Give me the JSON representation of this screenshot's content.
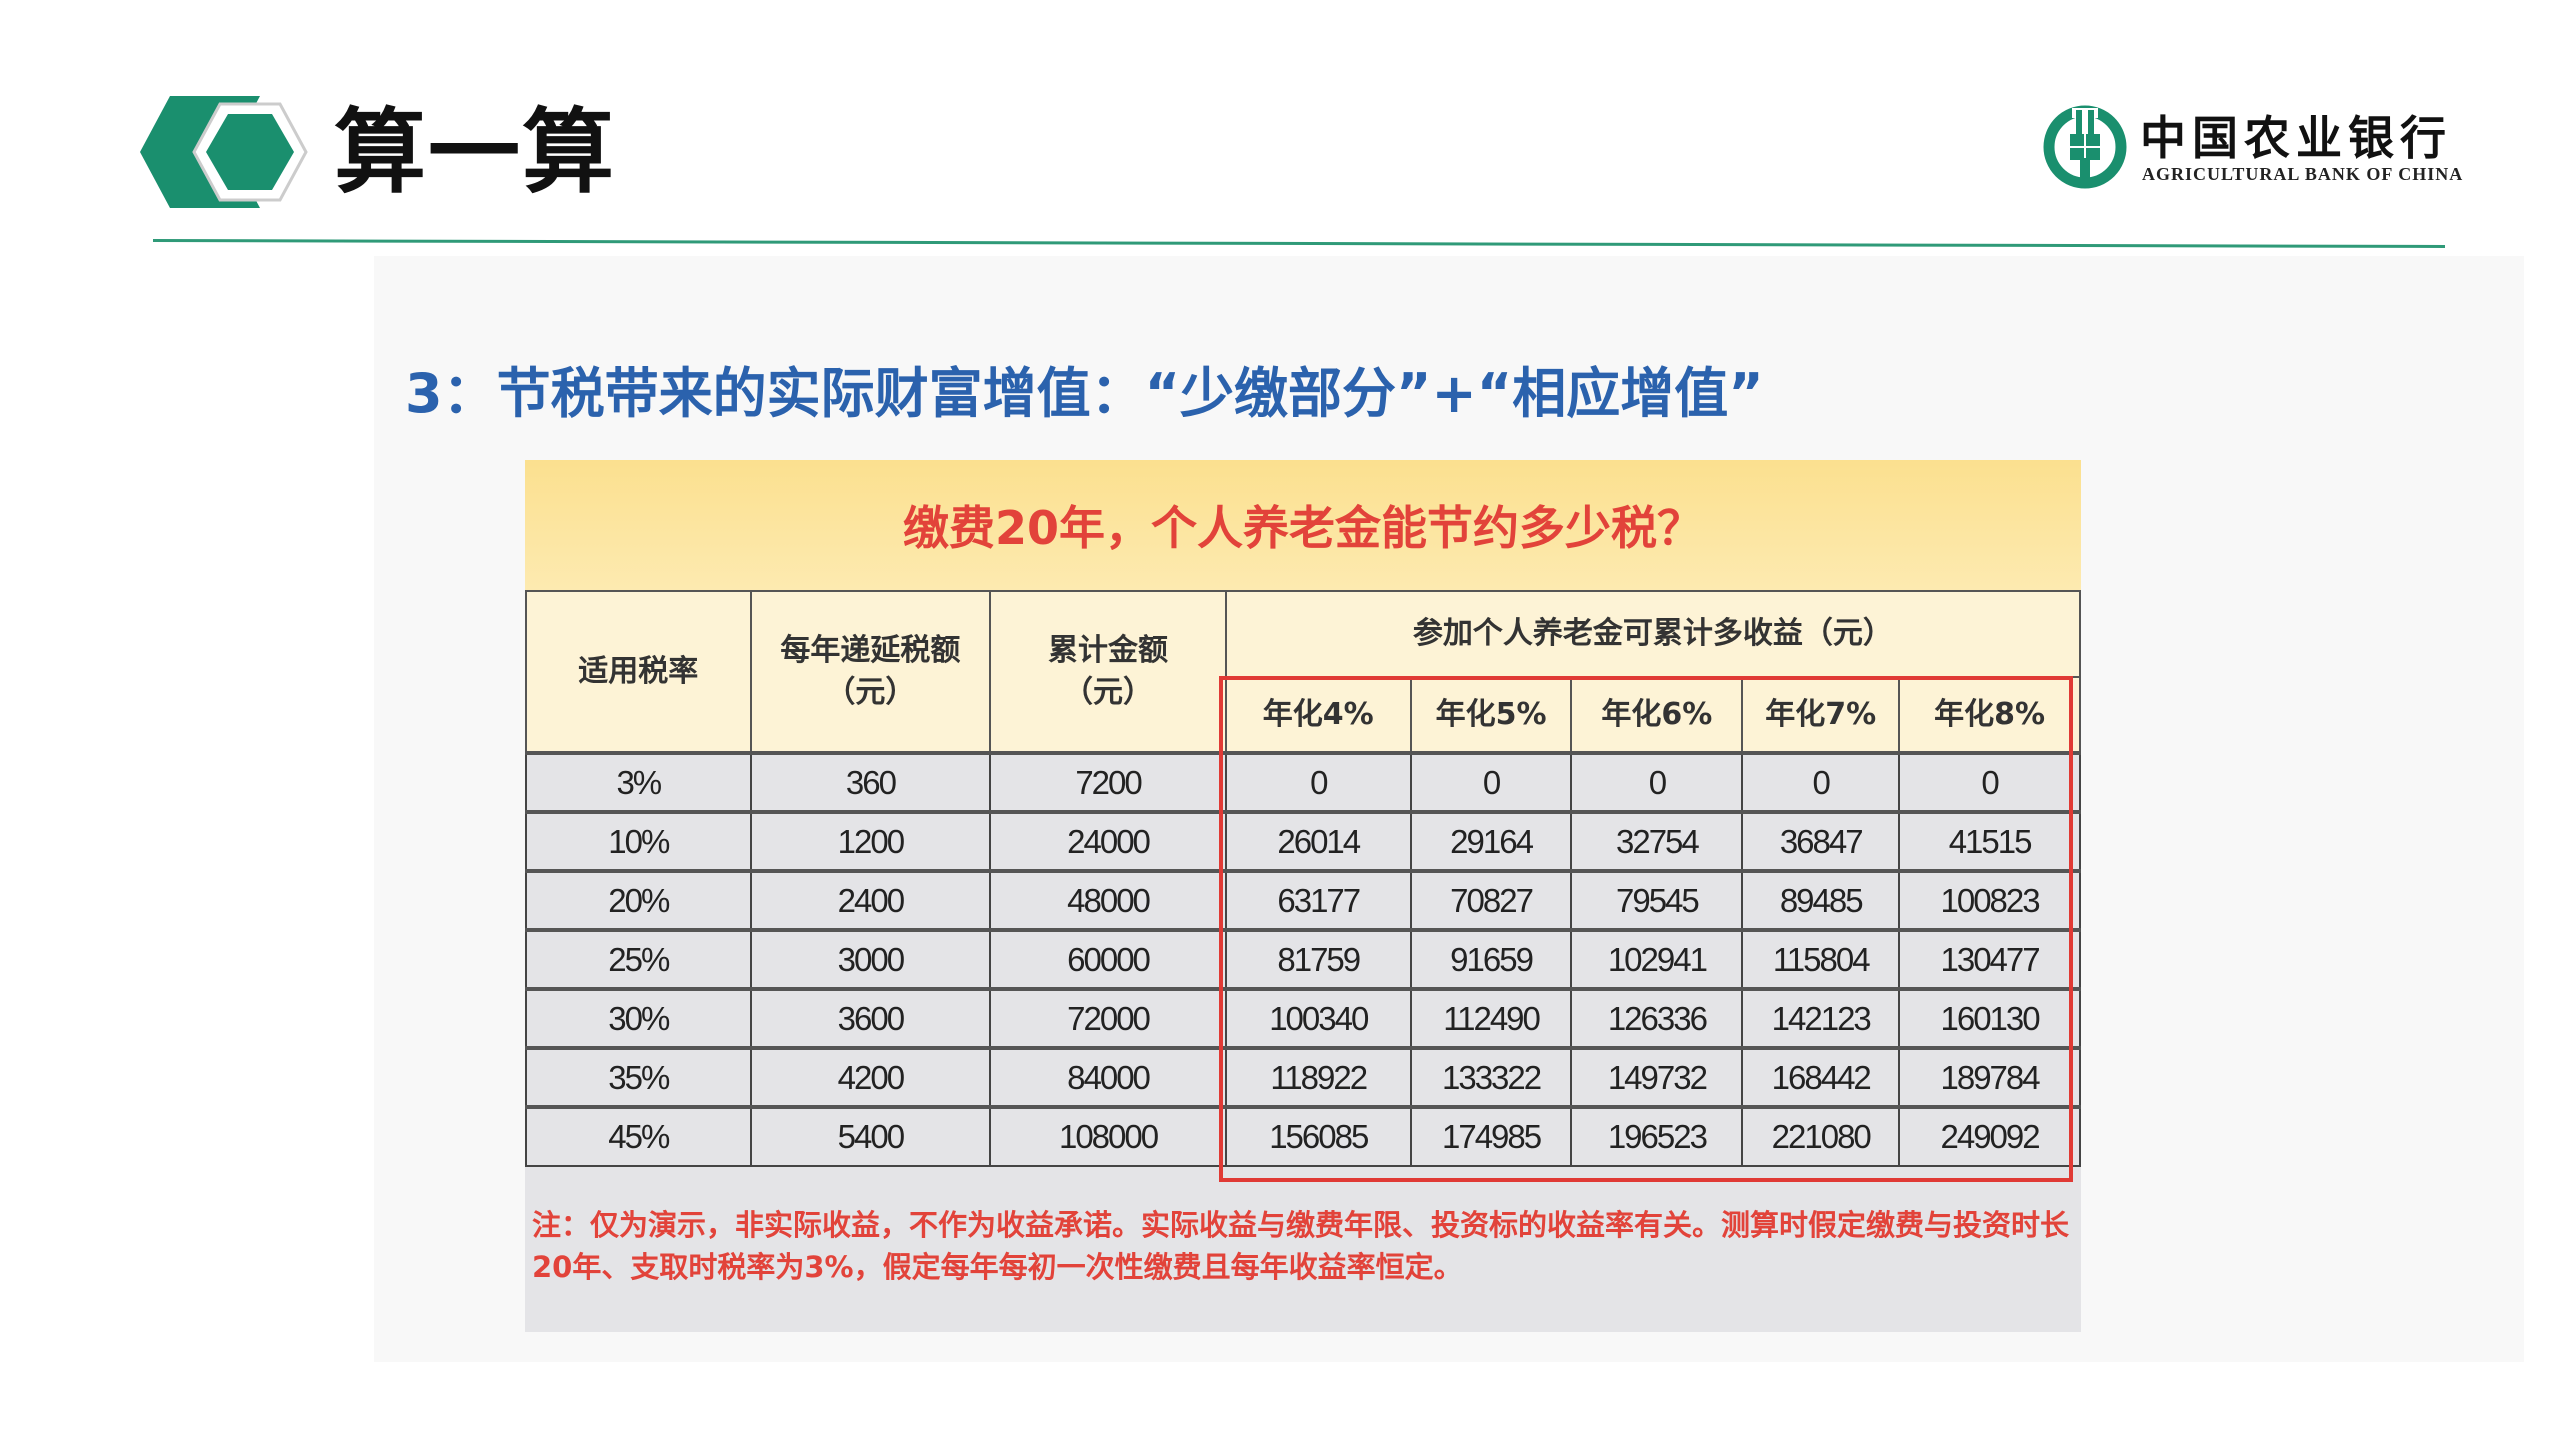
{
  "header": {
    "title": "算一算",
    "icon": "hexagon-arrow-icon",
    "logo": {
      "cn": "中国农业银行",
      "en": "AGRICULTURAL BANK OF CHINA"
    }
  },
  "colors": {
    "brand_green": "#1a8f6e",
    "subtitle_blue": "#2b62ad",
    "highlight_red": "#e2433a",
    "banner_yellow": "#fbe08f"
  },
  "subtitle": "3：节税带来的实际财富增值：“少缴部分”+“相应增值”",
  "banner": "缴费20年，个人养老金能节约多少税？",
  "table": {
    "headers": {
      "rate": "适用税率",
      "annual": "每年递延税额\n（元）",
      "total": "累计金额\n（元）",
      "gain_group": "参加个人养老金可累计多收益（元）",
      "gains": [
        "年化4%",
        "年化5%",
        "年化6%",
        "年化7%",
        "年化8%"
      ]
    },
    "rows": [
      [
        "3%",
        "360",
        "7200",
        "0",
        "0",
        "0",
        "0",
        "0"
      ],
      [
        "10%",
        "1200",
        "24000",
        "26014",
        "29164",
        "32754",
        "36847",
        "41515"
      ],
      [
        "20%",
        "2400",
        "48000",
        "63177",
        "70827",
        "79545",
        "89485",
        "100823"
      ],
      [
        "25%",
        "3000",
        "60000",
        "81759",
        "91659",
        "102941",
        "115804",
        "130477"
      ],
      [
        "30%",
        "3600",
        "72000",
        "100340",
        "112490",
        "126336",
        "142123",
        "160130"
      ],
      [
        "35%",
        "4200",
        "84000",
        "118922",
        "133322",
        "149732",
        "168442",
        "189784"
      ],
      [
        "45%",
        "5400",
        "108000",
        "156085",
        "174985",
        "196523",
        "221080",
        "249092"
      ]
    ]
  },
  "note": "注：仅为演示，非实际收益，不作为收益承诺。实际收益与缴费年限、投资标的收益率有关。测算时假定缴费与投资时长20年、支取时税率为3%，假定每年每初一次性缴费且每年收益率恒定。"
}
